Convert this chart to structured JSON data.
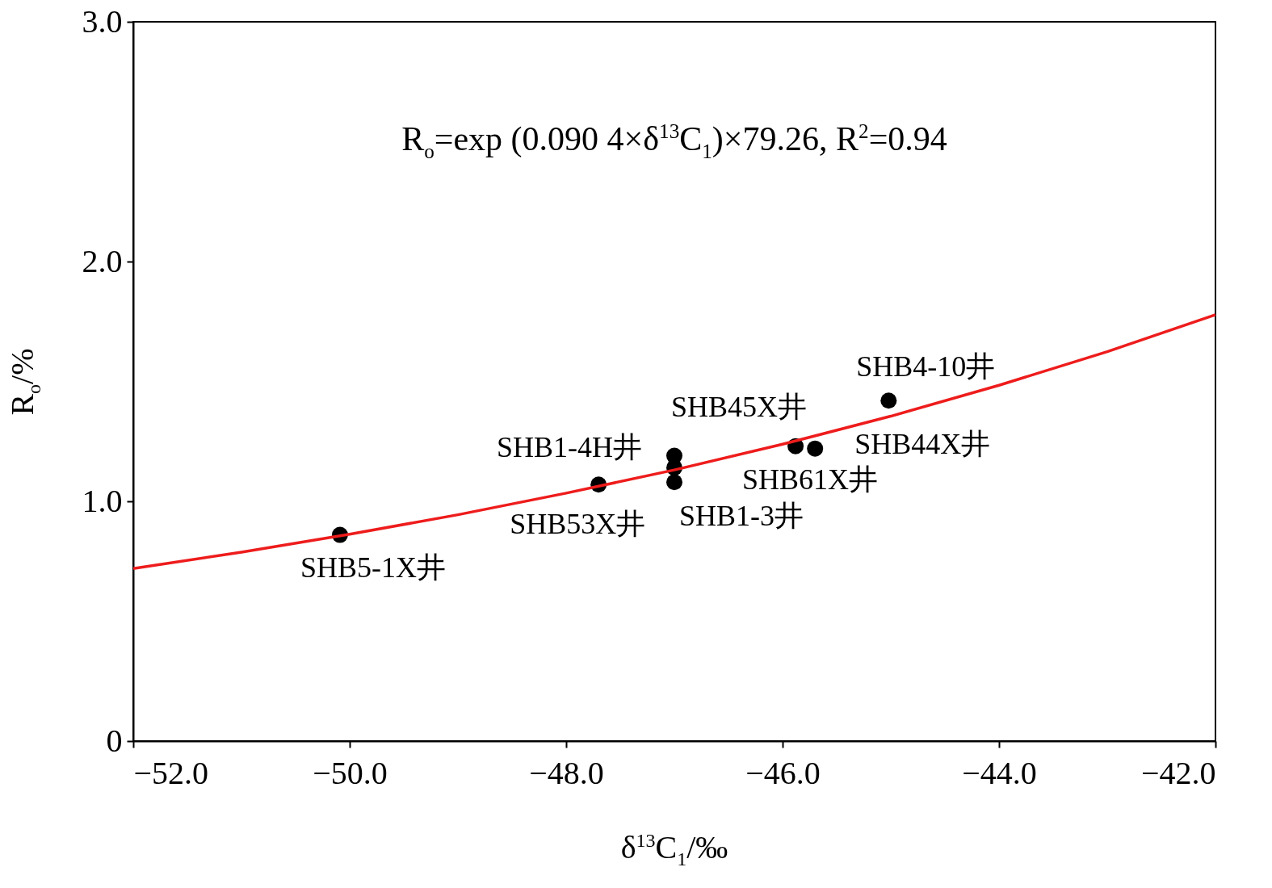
{
  "chart_data": {
    "type": "scatter",
    "xlabel": "δ$^{13}$C$_{1}$/‰",
    "ylabel": "R$_{o}$/%",
    "xlim": [
      -52,
      -42
    ],
    "ylim": [
      0,
      3
    ],
    "xticks": [
      {
        "value": -52,
        "label": "−52.0"
      },
      {
        "value": -50,
        "label": "−50.0"
      },
      {
        "value": -48,
        "label": "−48.0"
      },
      {
        "value": -46,
        "label": "−46.0"
      },
      {
        "value": -44,
        "label": "−44.0"
      },
      {
        "value": -42,
        "label": "−42.0"
      }
    ],
    "yticks": [
      0,
      {
        "value": 1,
        "label": "1.0"
      },
      {
        "value": 2,
        "label": "2.0"
      },
      {
        "value": 3,
        "label": "3.0"
      }
    ],
    "grid": false,
    "series": [
      {
        "type": "line",
        "color": "#ee1c1c",
        "x": [
          -52,
          -51,
          -50,
          -49,
          -48,
          -47,
          -46,
          -45,
          -44,
          -43,
          -42
        ],
        "values": [
          0.72,
          0.788,
          0.863,
          0.944,
          1.034,
          1.131,
          1.238,
          1.355,
          1.484,
          1.624,
          1.778
        ]
      },
      {
        "marker": "circle",
        "color": "#000000",
        "x": [
          -50.09,
          -47.7,
          -47.0,
          -47.0,
          -47.0,
          -45.88,
          -45.7,
          -45.02
        ],
        "values": [
          0.86,
          1.07,
          1.14,
          1.19,
          1.08,
          1.23,
          1.22,
          1.42
        ]
      }
    ],
    "annotations": [
      "R$_{o}$=exp (0.090 4×δ$^{13}$C$_{1}$)×79.26, R$^{2}$=0.94",
      {
        "text": "SHB5-1X井",
        "x": -50.09,
        "y": 0.86
      },
      {
        "text": "SHB1-4H井",
        "x": -47.0,
        "y": 1.14
      },
      {
        "text": "SHB45X井",
        "x": -47.0,
        "y": 1.19
      },
      {
        "text": "SHB53X井",
        "x": -47.7,
        "y": 1.07
      },
      {
        "text": "SHB1-3井",
        "x": -47.0,
        "y": 1.08
      },
      {
        "text": "SHB61X井",
        "x": -45.88,
        "y": 1.23
      },
      {
        "text": "SHB44X井",
        "x": -45.7,
        "y": 1.22
      },
      {
        "text": "SHB4-10井",
        "x": -45.02,
        "y": 1.42
      }
    ]
  }
}
